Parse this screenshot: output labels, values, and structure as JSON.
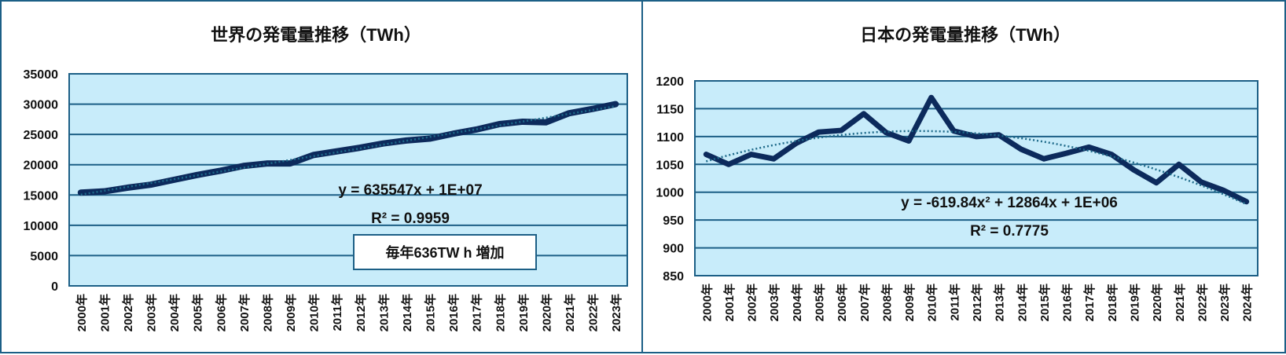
{
  "colors": {
    "plot_bg": "#c8ecfa",
    "grid": "#1c5f86",
    "line": "#0c2a5c",
    "trend": "#1e6a8a",
    "border": "#1c5f86"
  },
  "chart_data": [
    {
      "type": "line",
      "title": "世界の発電量推移（TWh）",
      "categories": [
        "2000年",
        "2001年",
        "2002年",
        "2003年",
        "2004年",
        "2005年",
        "2006年",
        "2007年",
        "2008年",
        "2009年",
        "2010年",
        "2011年",
        "2012年",
        "2013年",
        "2014年",
        "2015年",
        "2016年",
        "2017年",
        "2018年",
        "2019年",
        "2020年",
        "2021年",
        "2022年",
        "2023年"
      ],
      "values": [
        15400,
        15600,
        16200,
        16700,
        17500,
        18300,
        19000,
        19800,
        20200,
        20200,
        21600,
        22200,
        22800,
        23500,
        24000,
        24300,
        25100,
        25800,
        26700,
        27100,
        27000,
        28500,
        29200,
        30000
      ],
      "ylim": [
        0,
        35000
      ],
      "yticks": [
        "0",
        "5000",
        "10000",
        "15000",
        "20000",
        "25000",
        "30000",
        "35000"
      ],
      "trendline": {
        "type": "linear",
        "equation": "y = 635547x + 1E+07",
        "r2": "R² = 0.9959"
      },
      "annotation": "毎年636TW h 増加",
      "grid": true
    },
    {
      "type": "line",
      "title": "日本の発電量推移（TWh）",
      "categories": [
        "2000年",
        "2001年",
        "2002年",
        "2003年",
        "2004年",
        "2005年",
        "2006年",
        "2007年",
        "2008年",
        "2009年",
        "2010年",
        "2011年",
        "2012年",
        "2013年",
        "2014年",
        "2015年",
        "2016年",
        "2017年",
        "2018年",
        "2019年",
        "2020年",
        "2021年",
        "2022年",
        "2023年",
        "2024年"
      ],
      "values": [
        1068,
        1050,
        1068,
        1060,
        1088,
        1108,
        1111,
        1141,
        1107,
        1092,
        1170,
        1110,
        1100,
        1103,
        1077,
        1060,
        1070,
        1081,
        1068,
        1040,
        1017,
        1050,
        1018,
        1003,
        983
      ],
      "ylim": [
        850,
        1200
      ],
      "yticks": [
        "850",
        "900",
        "950",
        "1000",
        "1050",
        "1100",
        "1150",
        "1200"
      ],
      "trendline": {
        "type": "polynomial-2",
        "equation": "y = -619.84x² + 12864x + 1E+06",
        "r2": "R² = 0.7775"
      },
      "grid": true
    }
  ]
}
